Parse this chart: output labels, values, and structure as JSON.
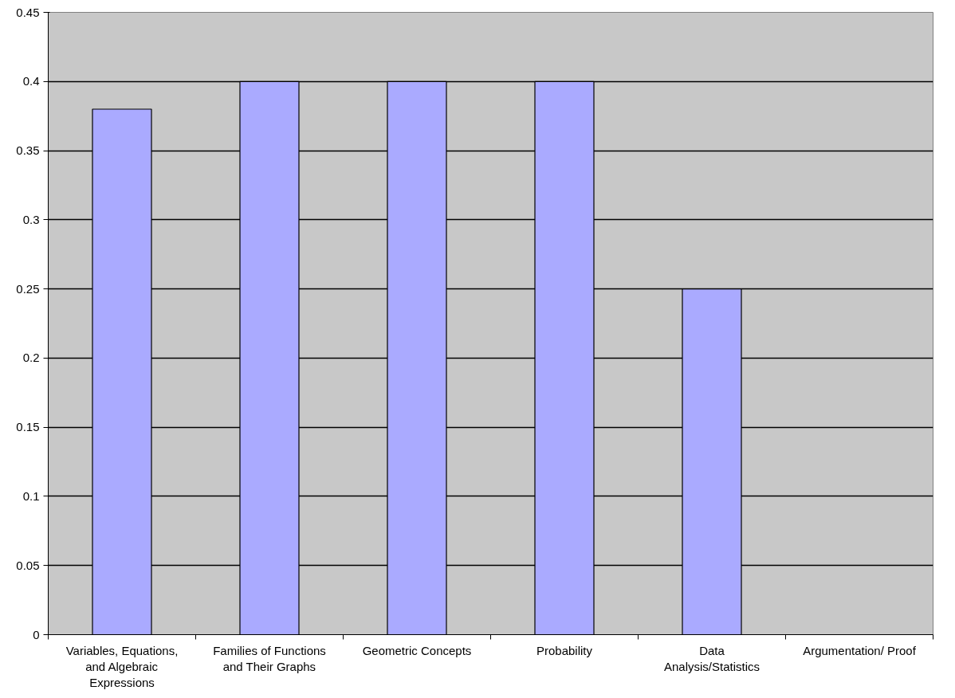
{
  "chart_data": {
    "type": "bar",
    "categories": [
      "Variables, Equations, and Algebraic Expressions",
      "Families of Functions and Their Graphs",
      "Geometric Concepts",
      "Probability",
      "Data Analysis/Statistics",
      "Argumentation/ Proof"
    ],
    "values": [
      0.38,
      0.4,
      0.4,
      0.4,
      0.25,
      0
    ],
    "color": "#aaaaff",
    "ylim": [
      0,
      0.45
    ],
    "yticks": [
      0,
      0.05,
      0.1,
      0.15,
      0.2,
      0.25,
      0.3,
      0.35,
      0.4,
      0.45
    ],
    "grid": "y"
  }
}
